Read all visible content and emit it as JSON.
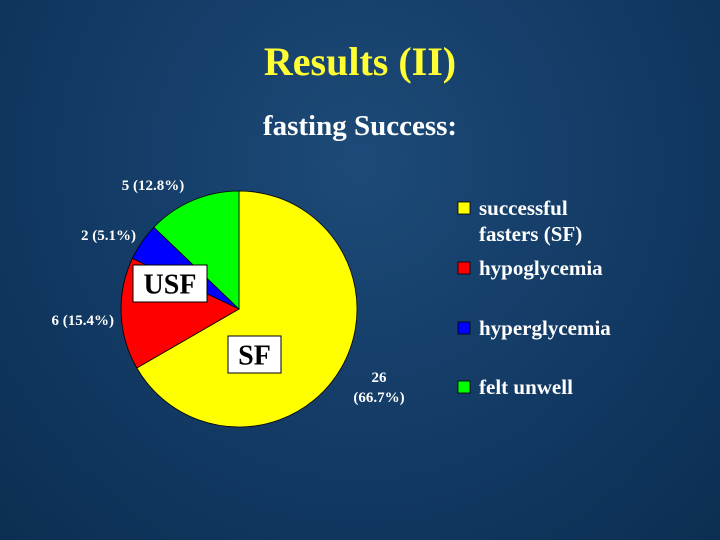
{
  "slide": {
    "title": "Results (II)"
  },
  "chart_data": {
    "type": "pie",
    "title": "fasting Success:",
    "slices": [
      {
        "label": "successful fasters (SF)",
        "legend_lines": [
          "successful",
          "fasters (SF)"
        ],
        "value": 26,
        "percent": "66.7%",
        "data_label": [
          "26",
          "(66.7%)"
        ],
        "color": "#ffff00"
      },
      {
        "label": "hypoglycemia",
        "legend_lines": [
          "hypoglycemia"
        ],
        "value": 6,
        "percent": "15.4%",
        "data_label": [
          "6 (15.4%)"
        ],
        "color": "#ff0000"
      },
      {
        "label": "hyperglycemia",
        "legend_lines": [
          "hyperglycemia"
        ],
        "value": 2,
        "percent": "5.1%",
        "data_label": [
          "2 (5.1%)"
        ],
        "color": "#0000ff"
      },
      {
        "label": "felt unwell",
        "legend_lines": [
          "felt unwell"
        ],
        "value": 5,
        "percent": "12.8%",
        "data_label": [
          "5 (12.8%)"
        ],
        "color": "#00ff00"
      }
    ],
    "legend_position": "right",
    "group_labels": {
      "usf": "USF",
      "sf": "SF"
    }
  }
}
